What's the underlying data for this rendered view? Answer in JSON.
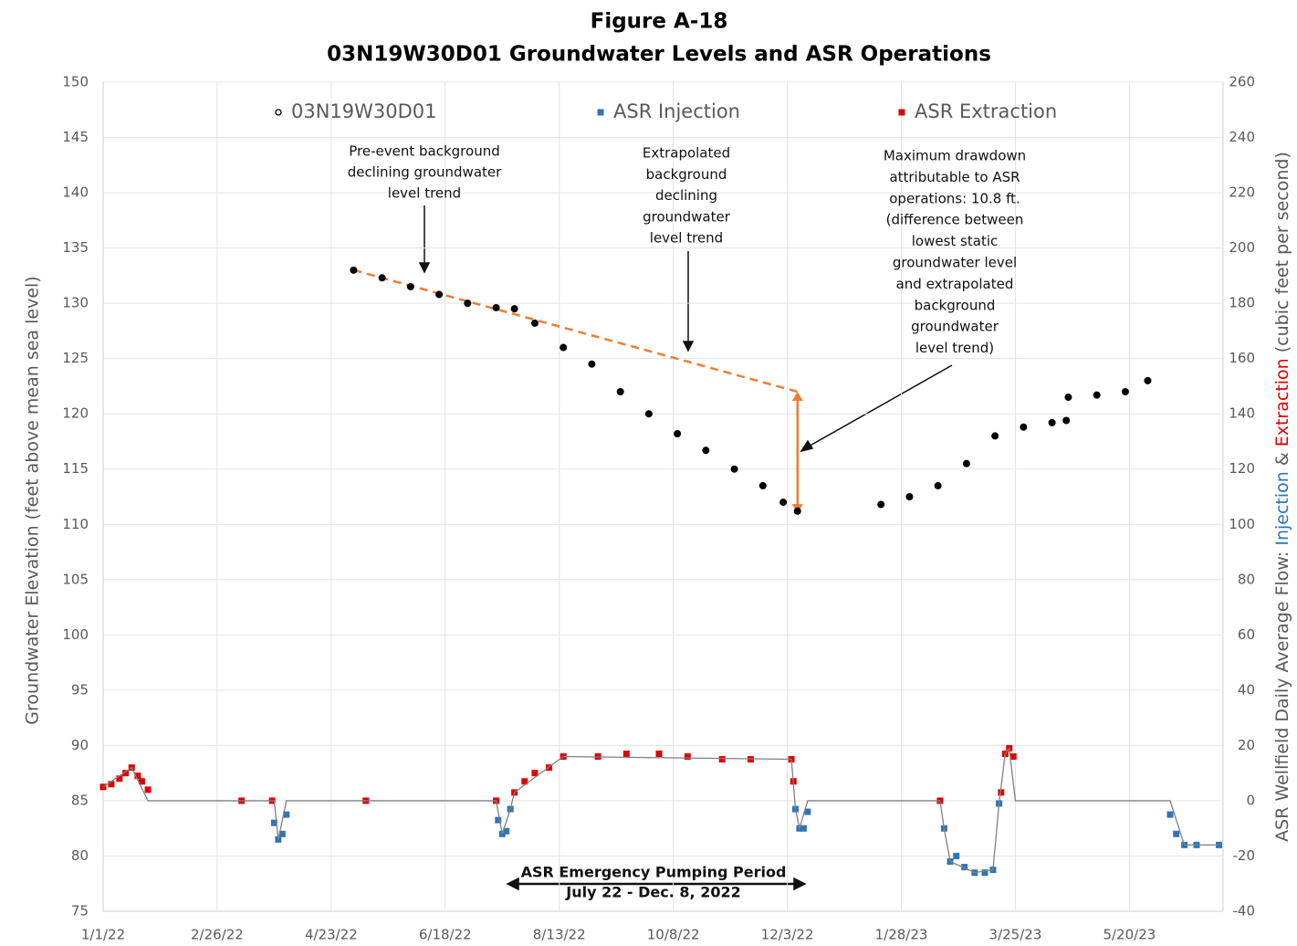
{
  "chart_data": {
    "type": "scatter",
    "title": "Figure A-18",
    "subtitle": "03N19W30D01 Groundwater Levels and ASR Operations",
    "ylabel": "Groundwater Elevation (feet above mean sea level)",
    "y2label_parts": [
      "ASR Wellfield Daily Average Flow: ",
      "Injection",
      " & ",
      "Extraction",
      " (cubic feet per second)"
    ],
    "y2label_colors": [
      "#595959",
      "#2e75b6",
      "#595959",
      "#e00000",
      "#595959"
    ],
    "xlim": [
      "2022-01-01",
      "2023-07-05"
    ],
    "xticks": [
      {
        "value": "2022-01-01",
        "label": "1/1/22"
      },
      {
        "value": "2022-02-26",
        "label": "2/26/22"
      },
      {
        "value": "2022-04-23",
        "label": "4/23/22"
      },
      {
        "value": "2022-06-18",
        "label": "6/18/22"
      },
      {
        "value": "2022-08-13",
        "label": "8/13/22"
      },
      {
        "value": "2022-10-08",
        "label": "10/8/22"
      },
      {
        "value": "2022-12-03",
        "label": "12/3/22"
      },
      {
        "value": "2023-01-28",
        "label": "1/28/23"
      },
      {
        "value": "2023-03-25",
        "label": "3/25/23"
      },
      {
        "value": "2023-05-20",
        "label": "5/20/23"
      }
    ],
    "ylim": [
      75,
      150
    ],
    "yticks": [
      75,
      80,
      85,
      90,
      95,
      100,
      105,
      110,
      115,
      120,
      125,
      130,
      135,
      140,
      145,
      150
    ],
    "y2lim": [
      -40,
      260
    ],
    "y2ticks": [
      -40,
      -20,
      0,
      20,
      40,
      60,
      80,
      100,
      120,
      140,
      160,
      180,
      200,
      220,
      240,
      260
    ],
    "grid": true,
    "legend": "top",
    "series": [
      {
        "name": "03N19W30D01",
        "color": "#000000",
        "marker": "circle",
        "x": [
          "2022-05-04",
          "2022-05-18",
          "2022-06-01",
          "2022-06-15",
          "2022-06-29",
          "2022-07-13",
          "2022-07-22",
          "2022-08-01",
          "2022-08-15",
          "2022-08-29",
          "2022-09-12",
          "2022-09-26",
          "2022-10-10",
          "2022-10-24",
          "2022-11-07",
          "2022-11-21",
          "2022-12-01",
          "2022-12-08",
          "2023-01-18",
          "2023-02-01",
          "2023-02-15",
          "2023-03-01",
          "2023-03-15",
          "2023-03-29",
          "2023-04-12",
          "2023-04-19",
          "2023-04-20",
          "2023-05-04",
          "2023-05-18",
          "2023-05-29"
        ],
        "values": [
          133,
          132.3,
          131.5,
          130.8,
          130,
          129.6,
          129.5,
          128.2,
          126,
          124.5,
          122,
          120,
          118.2,
          116.7,
          115,
          113.5,
          112,
          111.2,
          111.8,
          112.5,
          113.5,
          115.5,
          118,
          118.8,
          119.2,
          119.4,
          121.5,
          121.7,
          122,
          123
        ]
      },
      {
        "name": "ASR Injection",
        "color": "#2e75b6",
        "marker": "square",
        "axis": "y2",
        "x": [
          "2022-03-26",
          "2022-03-28",
          "2022-03-30",
          "2022-04-01",
          "2022-07-14",
          "2022-07-16",
          "2022-07-18",
          "2022-07-20",
          "2022-12-07",
          "2022-12-09",
          "2022-12-11",
          "2022-12-13",
          "2023-02-18",
          "2023-02-21",
          "2023-02-24",
          "2023-02-28",
          "2023-03-05",
          "2023-03-10",
          "2023-03-14",
          "2023-03-17",
          "2023-06-09",
          "2023-06-12",
          "2023-06-16",
          "2023-06-22",
          "2023-07-03"
        ],
        "values": [
          -8,
          -14,
          -12,
          -5,
          -7,
          -12,
          -11,
          -3,
          -3,
          -10,
          -10,
          -4,
          -10,
          -22,
          -20,
          -24,
          -26,
          -26,
          -25,
          -1,
          -5,
          -12,
          -16,
          -16,
          -16
        ]
      },
      {
        "name": "ASR Extraction",
        "color": "#e00000",
        "marker": "square",
        "axis": "y2",
        "x": [
          "2022-01-01",
          "2022-01-05",
          "2022-01-09",
          "2022-01-12",
          "2022-01-15",
          "2022-01-18",
          "2022-01-20",
          "2022-01-23",
          "2022-03-10",
          "2022-03-25",
          "2022-05-10",
          "2022-07-13",
          "2022-07-22",
          "2022-07-27",
          "2022-08-01",
          "2022-08-08",
          "2022-08-15",
          "2022-09-01",
          "2022-09-15",
          "2022-10-01",
          "2022-10-15",
          "2022-11-01",
          "2022-11-15",
          "2022-12-05",
          "2022-12-06",
          "2023-02-16",
          "2023-03-18",
          "2023-03-20",
          "2023-03-22",
          "2023-03-24"
        ],
        "values": [
          5,
          6,
          8,
          10,
          12,
          9,
          7,
          4,
          0,
          0,
          0,
          0,
          3,
          7,
          10,
          12,
          16,
          16,
          17,
          17,
          16,
          15,
          15,
          15,
          7,
          0,
          3,
          17,
          19,
          16
        ]
      },
      {
        "color": "#808080",
        "marker": "line",
        "axis": "y2",
        "x": [
          "2022-01-01",
          "2022-01-15",
          "2022-01-23",
          "2022-03-26",
          "2022-03-28",
          "2022-04-01",
          "2022-07-13",
          "2022-07-16",
          "2022-07-20",
          "2022-07-22",
          "2022-08-15",
          "2022-12-05",
          "2022-12-07",
          "2022-12-09",
          "2022-12-13",
          "2023-02-16",
          "2023-02-18",
          "2023-02-21",
          "2023-03-05",
          "2023-03-14",
          "2023-03-17",
          "2023-03-20",
          "2023-03-22",
          "2023-03-25",
          "2023-06-09",
          "2023-06-16",
          "2023-07-03"
        ],
        "values": [
          5,
          12,
          0,
          0,
          -14,
          0,
          0,
          -12,
          -3,
          3,
          16,
          15,
          -3,
          -10,
          0,
          0,
          -10,
          -22,
          -26,
          -25,
          -1,
          17,
          19,
          0,
          0,
          -16,
          -16
        ]
      }
    ],
    "trend": {
      "color": "#ed7d31",
      "x": [
        "2022-05-04",
        "2022-12-08"
      ],
      "values": [
        133,
        122
      ]
    },
    "drawdown": {
      "color": "#ed7d31",
      "x": "2022-12-08",
      "values": [
        122,
        111
      ]
    },
    "annotations": [
      [
        "Pre-event background",
        "declining groundwater",
        "level trend"
      ],
      [
        "Extrapolated",
        "background",
        "declining",
        "groundwater",
        "level trend"
      ],
      [
        "Maximum drawdown",
        "attributable to ASR",
        "operations: 10.8 ft.",
        "(difference between",
        "lowest static",
        "groundwater level",
        "and extrapolated",
        "background",
        "groundwater",
        "level trend)"
      ],
      [
        "ASR Emergency Pumping Period",
        "July 22 - Dec. 8, 2022"
      ]
    ]
  }
}
